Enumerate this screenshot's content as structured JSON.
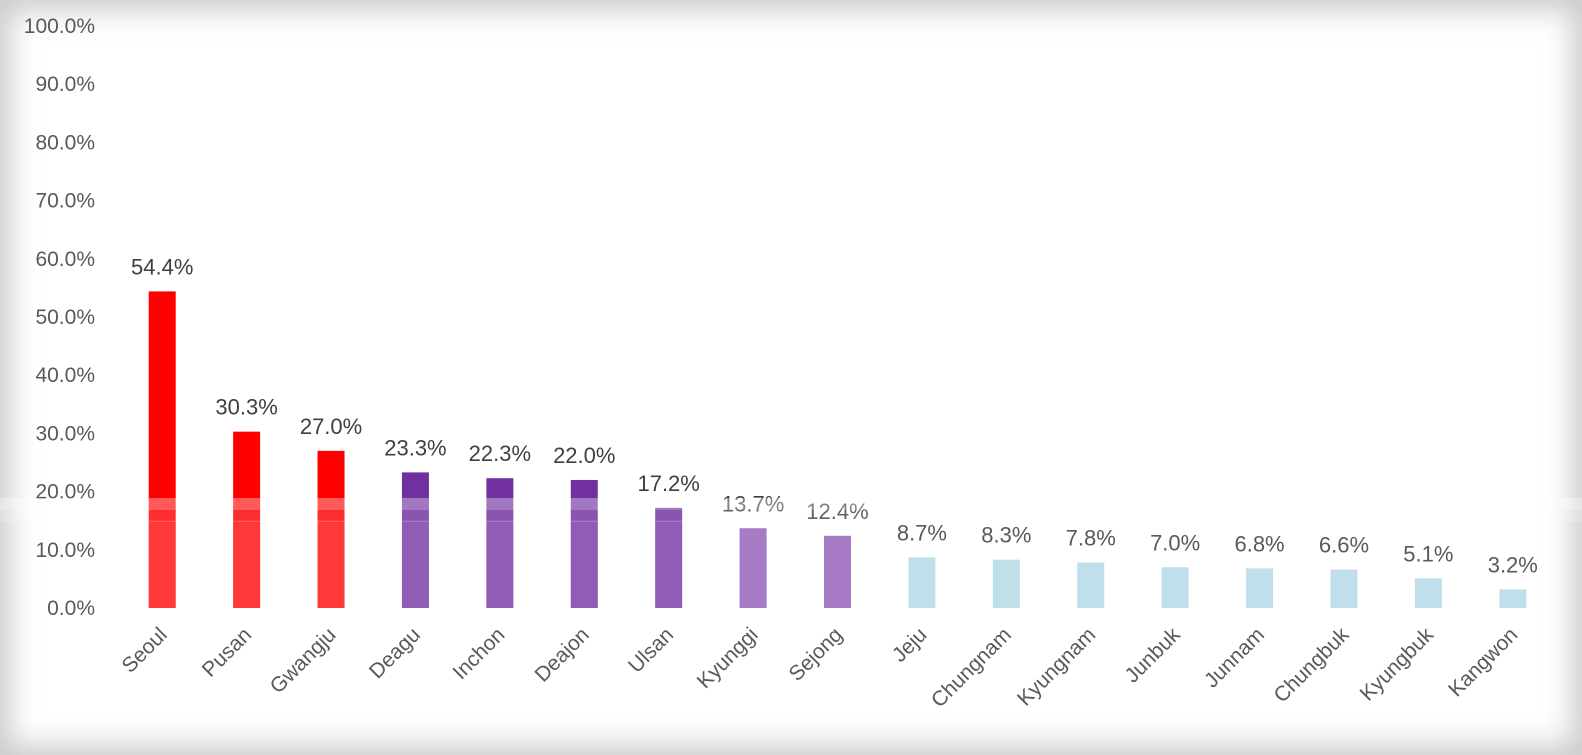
{
  "chart_data": {
    "type": "bar",
    "title": "",
    "xlabel": "",
    "ylabel": "",
    "ylim": [
      0,
      100
    ],
    "y_ticks": [
      0,
      10,
      20,
      30,
      40,
      50,
      60,
      70,
      80,
      90,
      100
    ],
    "y_tick_labels": [
      "0.0%",
      "10.0%",
      "20.0%",
      "30.0%",
      "40.0%",
      "50.0%",
      "60.0%",
      "70.0%",
      "80.0%",
      "90.0%",
      "100.0%"
    ],
    "grid": false,
    "legend": "none",
    "categories": [
      "Seoul",
      "Pusan",
      "Gwangju",
      "Deagu",
      "Inchon",
      "Deajon",
      "Ulsan",
      "Kyunggi",
      "Sejong",
      "Jeju",
      "Chungnam",
      "Kyungnam",
      "Junbuk",
      "Junnam",
      "Chungbuk",
      "Kyungbuk",
      "Kangwon"
    ],
    "values": [
      54.4,
      30.3,
      27.0,
      23.3,
      22.3,
      22.0,
      17.2,
      13.7,
      12.4,
      8.7,
      8.3,
      7.8,
      7.0,
      6.8,
      6.6,
      5.1,
      3.2
    ],
    "value_labels": [
      "54.4%",
      "30.3%",
      "27.0%",
      "23.3%",
      "22.3%",
      "22.0%",
      "17.2%",
      "13.7%",
      "12.4%",
      "8.7%",
      "8.3%",
      "7.8%",
      "7.0%",
      "6.8%",
      "6.6%",
      "5.1%",
      "3.2%"
    ],
    "bar_colors": [
      "#ff0000",
      "#ff0000",
      "#ff0000",
      "#7030a0",
      "#7030a0",
      "#7030a0",
      "#7030a0",
      "#8e55b4",
      "#8e55b4",
      "#add8e6",
      "#add8e6",
      "#add8e6",
      "#add8e6",
      "#add8e6",
      "#add8e6",
      "#add8e6",
      "#add8e6"
    ]
  }
}
